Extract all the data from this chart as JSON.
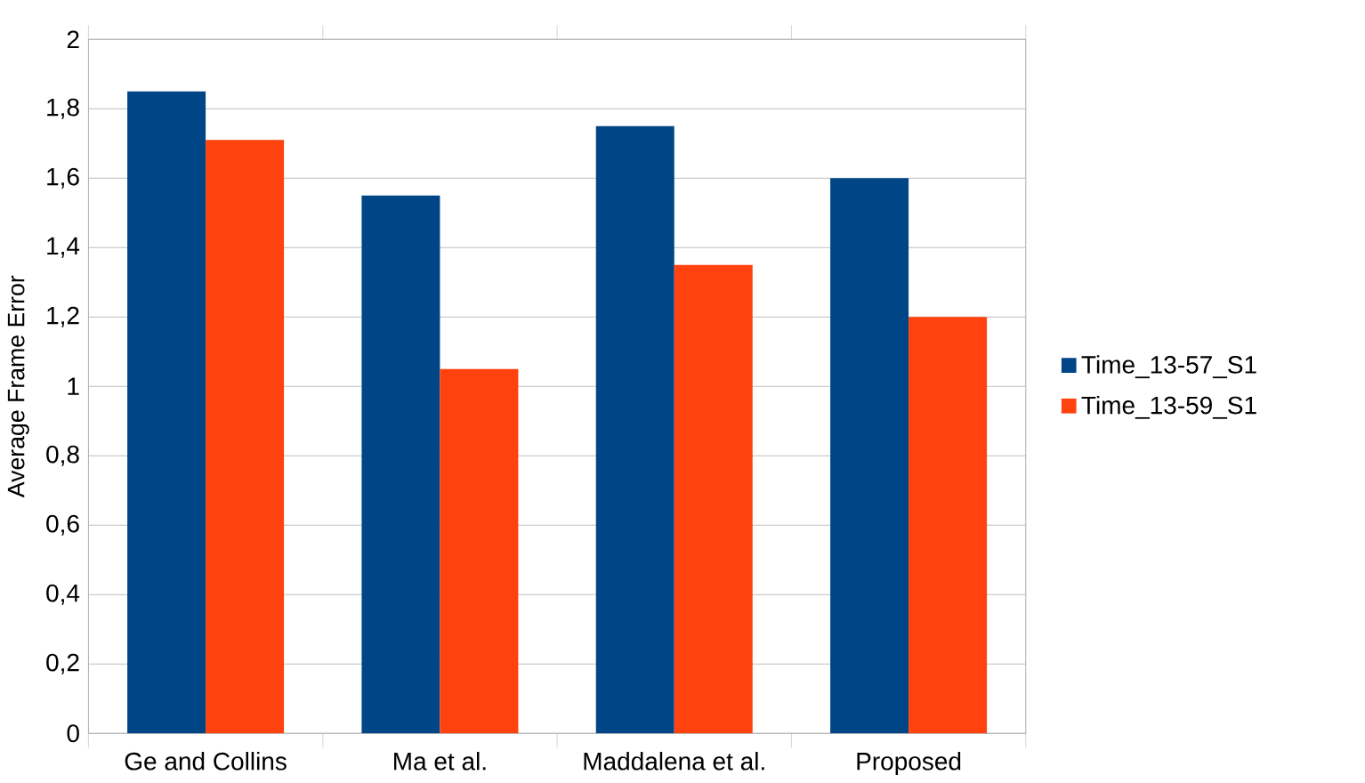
{
  "chart_data": {
    "type": "bar",
    "ylabel": "Average Frame Error",
    "categories": [
      "Ge and Collins",
      "Ma et al.",
      "Maddalena et al.",
      "Proposed"
    ],
    "series": [
      {
        "name": "Time_13-57_S1",
        "color": "#004586",
        "values": [
          1.85,
          1.55,
          1.75,
          1.6
        ]
      },
      {
        "name": "Time_13-59_S1",
        "color": "#ff420e",
        "values": [
          1.71,
          1.05,
          1.35,
          1.2
        ]
      }
    ],
    "ylim": [
      0,
      2
    ],
    "yticks": [
      {
        "value": 0,
        "label": "0"
      },
      {
        "value": 0.2,
        "label": "0,2"
      },
      {
        "value": 0.4,
        "label": "0,4"
      },
      {
        "value": 0.6,
        "label": "0,6"
      },
      {
        "value": 0.8,
        "label": "0,8"
      },
      {
        "value": 1,
        "label": "1"
      },
      {
        "value": 1.2,
        "label": "1,2"
      },
      {
        "value": 1.4,
        "label": "1,4"
      },
      {
        "value": 1.6,
        "label": "1,6"
      },
      {
        "value": 1.8,
        "label": "1,8"
      },
      {
        "value": 2,
        "label": "2"
      }
    ],
    "grid": "y",
    "legend": "right"
  }
}
